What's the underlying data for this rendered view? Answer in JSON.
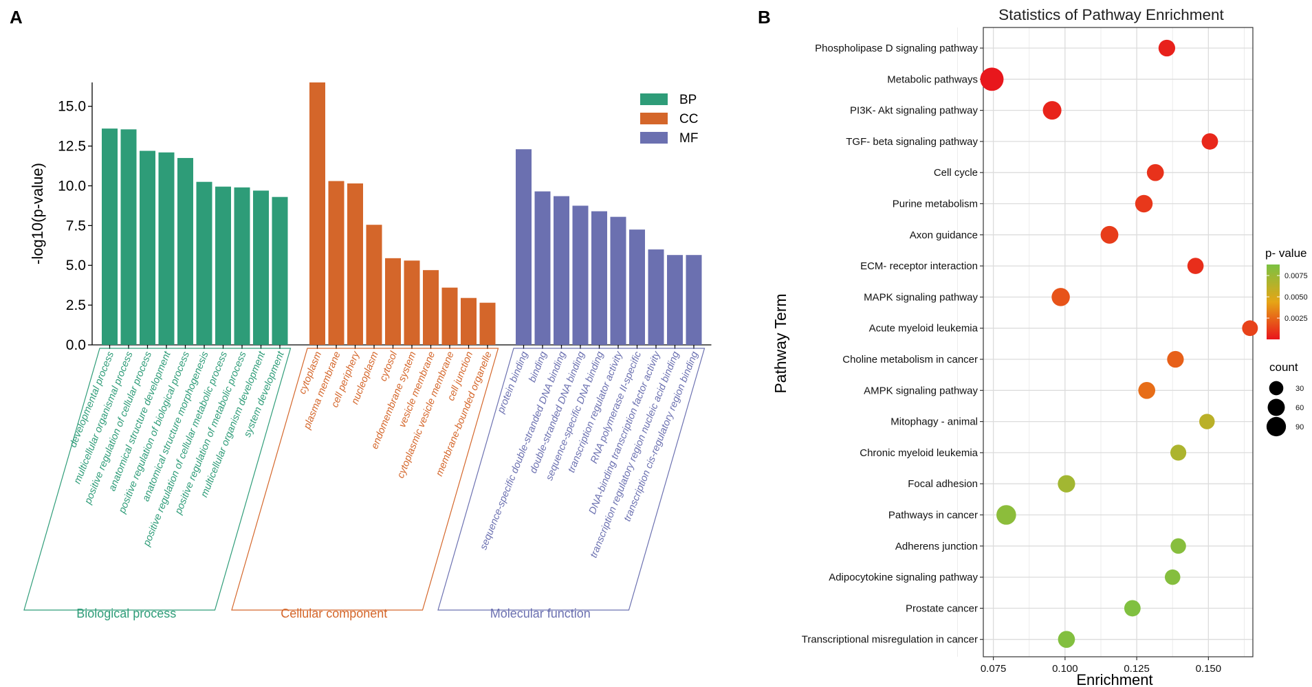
{
  "panels": {
    "a_label": "A",
    "b_label": "B"
  },
  "chart_data": [
    {
      "type": "bar",
      "ylabel": "-log10(p-value)",
      "ylim": [
        0,
        16.5
      ],
      "yticks": [
        "0.0",
        "2.5",
        "5.0",
        "7.5",
        "10.0",
        "12.5",
        "15.0"
      ],
      "ytick_values": [
        0,
        2.5,
        5,
        7.5,
        10,
        12.5,
        15
      ],
      "legend_position": "top-right",
      "series": [
        {
          "name": "BP",
          "group_label": "Biological process",
          "color": "#2e9c78",
          "categories": [
            "developmental process",
            "multicellular organismal process",
            "positive regulation of cellular process",
            "anatomical structure development",
            "positive regulation of biological process",
            "anatomical structure morphogenesis",
            "positive regulation of cellular metabolic process",
            "positive regulation of metabolic process",
            "multicellular organism development",
            "system development"
          ],
          "values": [
            13.6,
            13.55,
            12.2,
            12.1,
            11.75,
            10.25,
            9.95,
            9.9,
            9.7,
            9.3
          ]
        },
        {
          "name": "CC",
          "group_label": "Cellular component",
          "color": "#d4662a",
          "categories": [
            "cytoplasm",
            "plasma membrane",
            "cell periphery",
            "nucleoplasm",
            "cytosol",
            "endomembrane system",
            "vesicle membrane",
            "cytoplasmic vesicle membrane",
            "cell junction",
            "membrane-bounded organelle"
          ],
          "values": [
            16.5,
            10.3,
            10.15,
            7.55,
            5.45,
            5.3,
            4.7,
            3.6,
            2.95,
            2.65
          ]
        },
        {
          "name": "MF",
          "group_label": "Molecular function",
          "color": "#6b70b0",
          "categories": [
            "protein binding",
            "binding",
            "sequence-specific double-stranded DNA binding",
            "double-stranded DNA binding",
            "sequence-specific DNA binding",
            "transcription regulator activity",
            "RNA polymerase II-specific",
            "DNA-binding transcription factor activity",
            "transcription regulatory region nucleic acid binding",
            "transcription cis-regulatory region binding"
          ],
          "values": [
            12.3,
            9.65,
            9.35,
            8.75,
            8.4,
            8.05,
            7.25,
            6.0,
            5.65,
            5.65
          ]
        }
      ]
    },
    {
      "type": "scatter",
      "title": "Statistics of Pathway Enrichment",
      "xlabel": "Enrichment",
      "ylabel": "Pathway Term",
      "xlim": [
        0.0715,
        0.1655
      ],
      "xticks": [
        "0.075",
        "0.100",
        "0.125",
        "0.150"
      ],
      "xtick_values": [
        0.075,
        0.1,
        0.125,
        0.15
      ],
      "terms": [
        "Phospholipase D signaling pathway",
        "Metabolic pathways",
        "PI3K- Akt signaling pathway",
        "TGF- beta signaling pathway",
        "Cell cycle",
        "Purine metabolism",
        "Axon guidance",
        "ECM- receptor interaction",
        "MAPK signaling pathway",
        "Acute myeloid leukemia",
        "Choline metabolism in cancer",
        "AMPK signaling pathway",
        "Mitophagy -  animal",
        "Chronic myeloid leukemia",
        "Focal adhesion",
        "Pathways in cancer",
        "Adherens junction",
        "Adipocytokine signaling pathway",
        "Prostate cancer",
        "Transcriptional misregulation in cancer"
      ],
      "enrichment": [
        0.1355,
        0.0745,
        0.0955,
        0.1505,
        0.1315,
        0.1275,
        0.1155,
        0.1455,
        0.0985,
        0.1645,
        0.1385,
        0.1285,
        0.1495,
        0.1395,
        0.1005,
        0.0795,
        0.1395,
        0.1375,
        0.1235,
        0.1005
      ],
      "pvalue": [
        0.0004,
        0.0001,
        0.0005,
        0.0006,
        0.0009,
        0.0011,
        0.0012,
        0.0008,
        0.0019,
        0.0014,
        0.0023,
        0.0027,
        0.0062,
        0.0068,
        0.0072,
        0.0081,
        0.0083,
        0.0084,
        0.0086,
        0.0085
      ],
      "count": [
        30,
        96,
        45,
        28,
        32,
        36,
        38,
        27,
        42,
        24,
        30,
        32,
        22,
        25,
        35,
        55,
        22,
        22,
        28,
        32
      ],
      "legend": {
        "color_title": "p- value",
        "color_ticks": [
          "0.0075",
          "0.0050",
          "0.0025"
        ],
        "color_tick_values": [
          0.0075,
          0.005,
          0.0025
        ],
        "color_range": [
          0,
          0.0088
        ],
        "color_low": "#e8141c",
        "color_mid": "#e6a516",
        "color_high": "#7bc142",
        "size_title": "count",
        "size_labels": [
          "30",
          "60",
          "90"
        ],
        "size_values": [
          30,
          60,
          90
        ]
      }
    }
  ]
}
